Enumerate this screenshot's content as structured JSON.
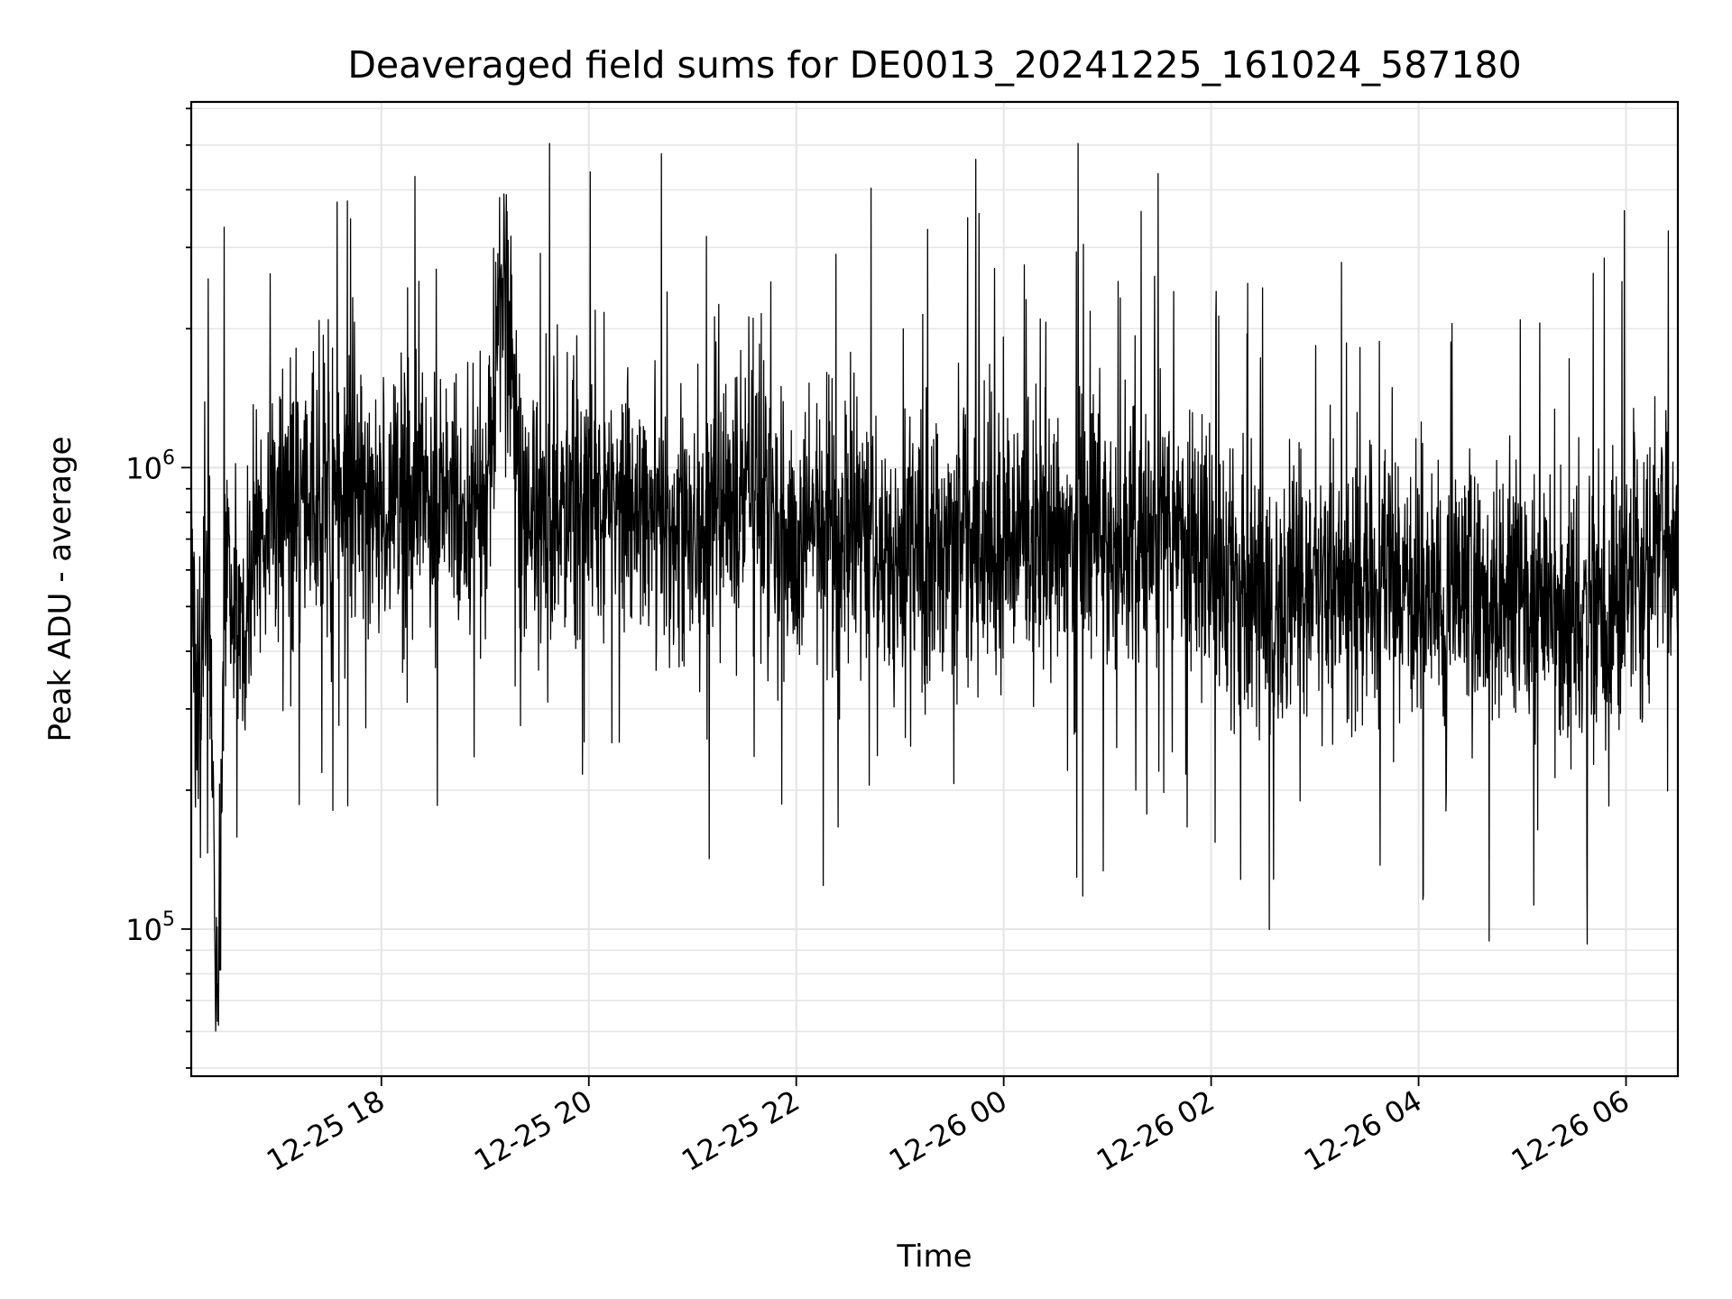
{
  "chart_data": {
    "type": "line",
    "title": "Deaveraged field sums for DE0013_20241225_161024_587180",
    "xlabel": "Time",
    "ylabel": "Peak ADU - average",
    "yscale": "log",
    "grid": true,
    "legend": "none",
    "xlim": [
      "2024-12-25 16:10",
      "2024-12-26 06:30"
    ],
    "ylim": [
      48000,
      6200000
    ],
    "x_ticks": [
      {
        "value": "2024-12-25 18:00",
        "label": "12-25 18"
      },
      {
        "value": "2024-12-25 20:00",
        "label": "12-25 20"
      },
      {
        "value": "2024-12-25 22:00",
        "label": "12-25 22"
      },
      {
        "value": "2024-12-26 00:00",
        "label": "12-26 00"
      },
      {
        "value": "2024-12-26 02:00",
        "label": "12-26 02"
      },
      {
        "value": "2024-12-26 04:00",
        "label": "12-26 04"
      },
      {
        "value": "2024-12-26 06:00",
        "label": "12-26 06"
      }
    ],
    "y_ticks": [
      {
        "value": 100000,
        "base": "10",
        "exp": "5"
      },
      {
        "value": 1000000,
        "base": "10",
        "exp": "6"
      }
    ],
    "line_color": "#000000",
    "series": [
      {
        "x": [
          "2024-12-25 16:10",
          "2024-12-25 16:15",
          "2024-12-25 16:20",
          "2024-12-25 16:25",
          "2024-12-25 16:30",
          "2024-12-25 16:40",
          "2024-12-25 16:50",
          "2024-12-25 17:00",
          "2024-12-25 17:15",
          "2024-12-25 17:30",
          "2024-12-25 17:45",
          "2024-12-25 18:00",
          "2024-12-25 18:20",
          "2024-12-25 18:40",
          "2024-12-25 19:00",
          "2024-12-25 19:10",
          "2024-12-25 19:20",
          "2024-12-25 19:40",
          "2024-12-25 20:00",
          "2024-12-25 20:20",
          "2024-12-25 20:40",
          "2024-12-25 21:00",
          "2024-12-25 21:20",
          "2024-12-25 21:40",
          "2024-12-25 22:00",
          "2024-12-25 22:20",
          "2024-12-25 22:50",
          "2024-12-25 23:10",
          "2024-12-25 23:40",
          "2024-12-26 00:00",
          "2024-12-26 00:30",
          "2024-12-26 01:00",
          "2024-12-26 01:20",
          "2024-12-26 01:40",
          "2024-12-26 02:00",
          "2024-12-26 02:20",
          "2024-12-26 02:40",
          "2024-12-26 03:00",
          "2024-12-26 03:20",
          "2024-12-26 03:40",
          "2024-12-26 04:00",
          "2024-12-26 04:20",
          "2024-12-26 04:40",
          "2024-12-26 05:00",
          "2024-12-26 05:20",
          "2024-12-26 05:40",
          "2024-12-26 05:50",
          "2024-12-26 06:00",
          "2024-12-26 06:20",
          "2024-12-26 06:30"
        ],
        "values": [
          450000,
          360000,
          700000,
          58000,
          620000,
          420000,
          760000,
          800000,
          840000,
          860000,
          800000,
          840000,
          880000,
          820000,
          820000,
          3300000,
          840000,
          820000,
          860000,
          850000,
          720000,
          760000,
          820000,
          880000,
          720000,
          760000,
          680000,
          650000,
          700000,
          720000,
          680000,
          700000,
          760000,
          720000,
          600000,
          500000,
          520000,
          540000,
          560000,
          580000,
          520000,
          560000,
          540000,
          520000,
          500000,
          480000,
          470000,
          620000,
          680000,
          700000
        ]
      }
    ]
  }
}
